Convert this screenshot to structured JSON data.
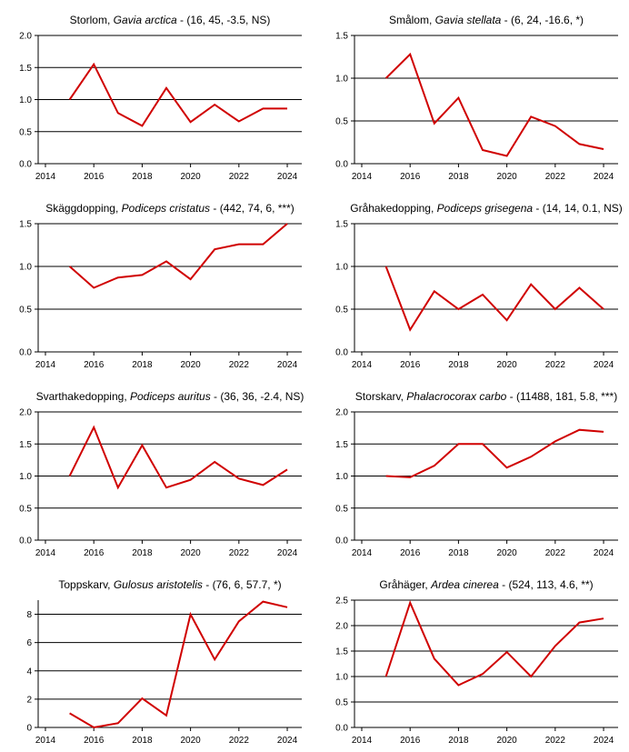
{
  "chart_data": [
    {
      "type": "line",
      "title_name": "Storlom, ",
      "title_latin": "Gavia arctica",
      "title_stats": " - (16, 45, -3.5, NS)",
      "x": [
        2015,
        2016,
        2017,
        2018,
        2019,
        2020,
        2021,
        2022,
        2023,
        2024
      ],
      "values": [
        1.0,
        1.55,
        0.79,
        0.59,
        1.18,
        0.65,
        0.92,
        0.66,
        0.86,
        0.86
      ],
      "xlim": [
        2013.7,
        2024.6
      ],
      "ylim": [
        0,
        2.0
      ],
      "yticks": [
        0,
        0.5,
        1.0,
        1.5,
        2.0
      ],
      "ytick_labels": [
        "0.0",
        "0.5",
        "1.0",
        "1.5",
        "2.0"
      ],
      "xticks": [
        2014,
        2016,
        2018,
        2020,
        2022,
        2024
      ],
      "xtick_labels": [
        "2014",
        "2016",
        "2018",
        "2020",
        "2022",
        "2024"
      ],
      "line_color": "#d00000"
    },
    {
      "type": "line",
      "title_name": "Smålom, ",
      "title_latin": "Gavia stellata",
      "title_stats": " - (6, 24, -16.6, *)",
      "x": [
        2015,
        2016,
        2017,
        2018,
        2019,
        2020,
        2021,
        2022,
        2023,
        2024
      ],
      "values": [
        1.0,
        1.28,
        0.47,
        0.77,
        0.16,
        0.09,
        0.55,
        0.44,
        0.23,
        0.17
      ],
      "xlim": [
        2013.7,
        2024.6
      ],
      "ylim": [
        0,
        1.5
      ],
      "yticks": [
        0,
        0.5,
        1.0,
        1.5
      ],
      "ytick_labels": [
        "0.0",
        "0.5",
        "1.0",
        "1.5"
      ],
      "xticks": [
        2014,
        2016,
        2018,
        2020,
        2022,
        2024
      ],
      "xtick_labels": [
        "2014",
        "2016",
        "2018",
        "2020",
        "2022",
        "2024"
      ],
      "line_color": "#d00000"
    },
    {
      "type": "line",
      "title_name": "Skäggdopping, ",
      "title_latin": "Podiceps cristatus",
      "title_stats": " - (442, 74, 6, ***)",
      "x": [
        2015,
        2016,
        2017,
        2018,
        2019,
        2020,
        2021,
        2022,
        2023,
        2024
      ],
      "values": [
        1.0,
        0.75,
        0.87,
        0.9,
        1.06,
        0.85,
        1.2,
        1.26,
        1.26,
        1.5
      ],
      "xlim": [
        2013.7,
        2024.6
      ],
      "ylim": [
        0,
        1.5
      ],
      "yticks": [
        0,
        0.5,
        1.0,
        1.5
      ],
      "ytick_labels": [
        "0.0",
        "0.5",
        "1.0",
        "1.5"
      ],
      "xticks": [
        2014,
        2016,
        2018,
        2020,
        2022,
        2024
      ],
      "xtick_labels": [
        "2014",
        "2016",
        "2018",
        "2020",
        "2022",
        "2024"
      ],
      "line_color": "#d00000"
    },
    {
      "type": "line",
      "title_name": "Gråhakedopping, ",
      "title_latin": "Podiceps grisegena",
      "title_stats": " - (14, 14, 0.1, NS)",
      "x": [
        2015,
        2016,
        2017,
        2018,
        2019,
        2020,
        2021,
        2022,
        2023,
        2024
      ],
      "values": [
        1.0,
        0.26,
        0.71,
        0.5,
        0.67,
        0.37,
        0.79,
        0.5,
        0.75,
        0.5
      ],
      "xlim": [
        2013.7,
        2024.6
      ],
      "ylim": [
        0,
        1.5
      ],
      "yticks": [
        0,
        0.5,
        1.0,
        1.5
      ],
      "ytick_labels": [
        "0.0",
        "0.5",
        "1.0",
        "1.5"
      ],
      "xticks": [
        2014,
        2016,
        2018,
        2020,
        2022,
        2024
      ],
      "xtick_labels": [
        "2014",
        "2016",
        "2018",
        "2020",
        "2022",
        "2024"
      ],
      "line_color": "#d00000"
    },
    {
      "type": "line",
      "title_name": "Svarthakedopping, ",
      "title_latin": "Podiceps auritus",
      "title_stats": " - (36, 36, -2.4, NS)",
      "x": [
        2015,
        2016,
        2017,
        2018,
        2019,
        2020,
        2021,
        2022,
        2023,
        2024
      ],
      "values": [
        1.0,
        1.76,
        0.82,
        1.48,
        0.82,
        0.94,
        1.22,
        0.96,
        0.86,
        1.1
      ],
      "xlim": [
        2013.7,
        2024.6
      ],
      "ylim": [
        0,
        2.0
      ],
      "yticks": [
        0,
        0.5,
        1.0,
        1.5,
        2.0
      ],
      "ytick_labels": [
        "0.0",
        "0.5",
        "1.0",
        "1.5",
        "2.0"
      ],
      "xticks": [
        2014,
        2016,
        2018,
        2020,
        2022,
        2024
      ],
      "xtick_labels": [
        "2014",
        "2016",
        "2018",
        "2020",
        "2022",
        "2024"
      ],
      "line_color": "#d00000"
    },
    {
      "type": "line",
      "title_name": "Storskarv, ",
      "title_latin": "Phalacrocorax carbo",
      "title_stats": " - (11488, 181, 5.8, ***)",
      "x": [
        2015,
        2016,
        2017,
        2018,
        2019,
        2020,
        2021,
        2022,
        2023,
        2024
      ],
      "values": [
        1.0,
        0.98,
        1.16,
        1.5,
        1.5,
        1.13,
        1.3,
        1.54,
        1.72,
        1.69
      ],
      "xlim": [
        2013.7,
        2024.6
      ],
      "ylim": [
        0,
        2.0
      ],
      "yticks": [
        0,
        0.5,
        1.0,
        1.5,
        2.0
      ],
      "ytick_labels": [
        "0.0",
        "0.5",
        "1.0",
        "1.5",
        "2.0"
      ],
      "xticks": [
        2014,
        2016,
        2018,
        2020,
        2022,
        2024
      ],
      "xtick_labels": [
        "2014",
        "2016",
        "2018",
        "2020",
        "2022",
        "2024"
      ],
      "line_color": "#d00000"
    },
    {
      "type": "line",
      "title_name": "Toppskarv, ",
      "title_latin": "Gulosus aristotelis",
      "title_stats": " - (76, 6, 57.7, *)",
      "x": [
        2015,
        2016,
        2017,
        2018,
        2019,
        2020,
        2021,
        2022,
        2023,
        2024
      ],
      "values": [
        1.0,
        0.0,
        0.3,
        2.05,
        0.85,
        8.0,
        4.8,
        7.5,
        8.9,
        8.5
      ],
      "xlim": [
        2013.7,
        2024.6
      ],
      "ylim": [
        0,
        9.0
      ],
      "yticks": [
        0,
        2,
        4,
        6,
        8
      ],
      "ytick_labels": [
        "0",
        "2",
        "4",
        "6",
        "8"
      ],
      "xticks": [
        2014,
        2016,
        2018,
        2020,
        2022,
        2024
      ],
      "xtick_labels": [
        "2014",
        "2016",
        "2018",
        "2020",
        "2022",
        "2024"
      ],
      "line_color": "#d00000"
    },
    {
      "type": "line",
      "title_name": "Gråhäger, ",
      "title_latin": "Ardea cinerea",
      "title_stats": " - (524, 113, 4.6, **)",
      "x": [
        2015,
        2016,
        2017,
        2018,
        2019,
        2020,
        2021,
        2022,
        2023,
        2024
      ],
      "values": [
        1.0,
        2.45,
        1.35,
        0.83,
        1.05,
        1.48,
        1.0,
        1.6,
        2.06,
        2.14
      ],
      "xlim": [
        2013.7,
        2024.6
      ],
      "ylim": [
        0,
        2.5
      ],
      "yticks": [
        0,
        0.5,
        1.0,
        1.5,
        2.0,
        2.5
      ],
      "ytick_labels": [
        "0.0",
        "0.5",
        "1.0",
        "1.5",
        "2.0",
        "2.5"
      ],
      "xticks": [
        2014,
        2016,
        2018,
        2020,
        2022,
        2024
      ],
      "xtick_labels": [
        "2014",
        "2016",
        "2018",
        "2020",
        "2022",
        "2024"
      ],
      "line_color": "#d00000"
    }
  ]
}
